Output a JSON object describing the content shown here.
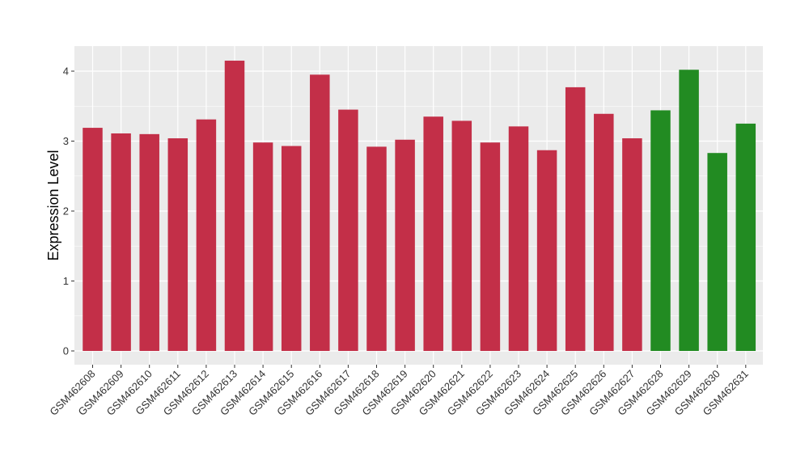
{
  "chart_data": {
    "type": "bar",
    "title": "",
    "xlabel": "",
    "ylabel": "Expression Level",
    "ylim": [
      -0.2,
      4.35
    ],
    "yticks": [
      0,
      1,
      2,
      3,
      4
    ],
    "grid": true,
    "categories": [
      "GSM462608",
      "GSM462609",
      "GSM462610",
      "GSM462611",
      "GSM462612",
      "GSM462613",
      "GSM462614",
      "GSM462615",
      "GSM462616",
      "GSM462617",
      "GSM462618",
      "GSM462619",
      "GSM462620",
      "GSM462621",
      "GSM462622",
      "GSM462623",
      "GSM462624",
      "GSM462625",
      "GSM462626",
      "GSM462627",
      "GSM462628",
      "GSM462629",
      "GSM462630",
      "GSM462631"
    ],
    "values": [
      3.19,
      3.11,
      3.1,
      3.04,
      3.31,
      4.15,
      2.98,
      2.93,
      3.95,
      3.45,
      2.92,
      3.02,
      3.35,
      3.29,
      2.98,
      3.21,
      2.87,
      3.77,
      3.39,
      3.04,
      3.44,
      4.02,
      2.83,
      3.25
    ],
    "bar_colors": [
      "#c32f48",
      "#c32f48",
      "#c32f48",
      "#c32f48",
      "#c32f48",
      "#c32f48",
      "#c32f48",
      "#c32f48",
      "#c32f48",
      "#c32f48",
      "#c32f48",
      "#c32f48",
      "#c32f48",
      "#c32f48",
      "#c32f48",
      "#c32f48",
      "#c32f48",
      "#c32f48",
      "#c32f48",
      "#c32f48",
      "#228b22",
      "#228b22",
      "#228b22",
      "#228b22"
    ],
    "panel_background": "#ebebeb",
    "grid_color": "#ffffff"
  }
}
